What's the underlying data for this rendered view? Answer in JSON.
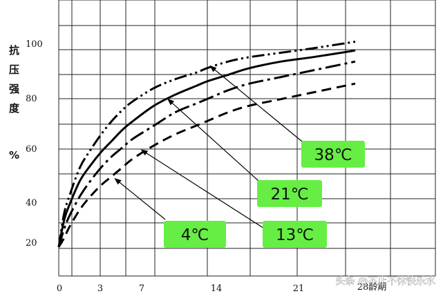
{
  "chart_data": {
    "type": "line",
    "title": "",
    "xlabel": "28龄期",
    "ylabel_chars": [
      "抗",
      "压",
      "强",
      "度",
      "%"
    ],
    "xlim": [
      0,
      28
    ],
    "ylim": [
      0,
      110
    ],
    "x_ticks": [
      0,
      3,
      7,
      14,
      21
    ],
    "y_ticks": [
      20,
      40,
      60,
      80,
      100
    ],
    "grid": true,
    "series": [
      {
        "name": "38℃",
        "color": "#000000",
        "style": "dash-dot-dot",
        "x": [
          0,
          0.5,
          1,
          2,
          3,
          4,
          5,
          6,
          7,
          9,
          11,
          13,
          14,
          16,
          18,
          21,
          24,
          28
        ],
        "y": [
          10,
          25,
          33,
          46,
          54,
          61,
          67,
          72,
          76,
          82,
          86,
          89,
          91,
          94,
          96,
          98,
          100,
          103
        ]
      },
      {
        "name": "21℃",
        "color": "#000000",
        "style": "solid",
        "x": [
          0,
          0.5,
          1,
          2,
          3,
          4,
          5,
          6,
          7,
          9,
          11,
          13,
          14,
          16,
          18,
          21,
          24,
          28
        ],
        "y": [
          10,
          22,
          29,
          40,
          47,
          53,
          58,
          63,
          67,
          74,
          79,
          83,
          85,
          88,
          91,
          94,
          96,
          99
        ]
      },
      {
        "name": "13℃",
        "color": "#000000",
        "style": "long-dash-dot",
        "x": [
          0,
          0.5,
          1,
          2,
          3,
          4,
          5,
          6,
          7,
          9,
          11,
          13,
          14,
          16,
          18,
          21,
          24,
          28
        ],
        "y": [
          10,
          18,
          24,
          33,
          40,
          46,
          51,
          55,
          59,
          65,
          71,
          75,
          77,
          81,
          84,
          87,
          90,
          94
        ]
      },
      {
        "name": "4℃",
        "color": "#000000",
        "style": "dashed",
        "x": [
          0,
          0.5,
          1,
          2,
          3,
          4,
          5,
          6,
          7,
          9,
          11,
          13,
          14,
          16,
          18,
          21,
          24,
          28
        ],
        "y": [
          10,
          14,
          19,
          27,
          33,
          38,
          42,
          46,
          50,
          56,
          61,
          65,
          67,
          71,
          74,
          77,
          80,
          84
        ]
      }
    ],
    "callouts": [
      {
        "label": "38℃",
        "series": "38℃",
        "point": [
          14.3,
          92
        ]
      },
      {
        "label": "21℃",
        "series": "21℃",
        "point": [
          10.3,
          77
        ]
      },
      {
        "label": "13℃",
        "series": "13℃",
        "point": [
          7.8,
          54
        ]
      },
      {
        "label": "4℃",
        "series": "4℃",
        "point": [
          5.3,
          41
        ]
      }
    ]
  },
  "callout_color": "#66ee44",
  "watermark": "头条 @不止不休快乐水"
}
